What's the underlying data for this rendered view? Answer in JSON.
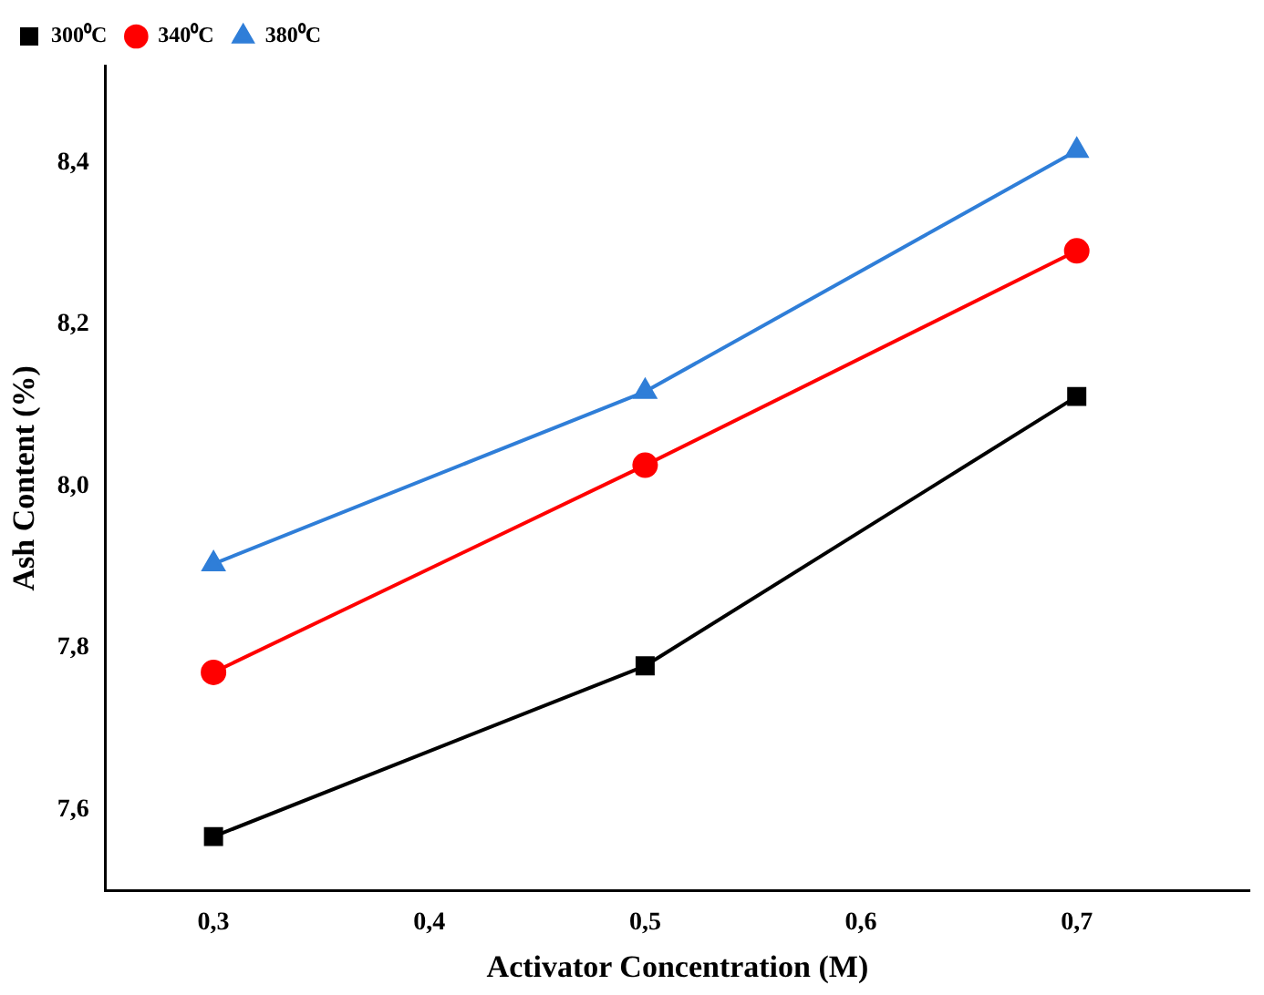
{
  "chart_data": {
    "type": "line",
    "xlabel": "Activator Concentration (M)",
    "ylabel": "Ash Content (%)",
    "x": [
      0.3,
      0.5,
      0.7
    ],
    "series": [
      {
        "name": "300⁰C",
        "color": "#000000",
        "marker": "square",
        "values": [
          7.567,
          7.778,
          8.111
        ]
      },
      {
        "name": "340⁰C",
        "color": "#ff0000",
        "marker": "circle",
        "values": [
          7.77,
          8.026,
          8.291
        ]
      },
      {
        "name": "380⁰C",
        "color": "#2f7ed8",
        "marker": "triangle",
        "values": [
          7.904,
          8.117,
          8.415
        ]
      }
    ],
    "xlim": [
      0.25,
      0.78
    ],
    "xticks": [
      {
        "value": 0.3,
        "label": "0,3"
      },
      {
        "value": 0.4,
        "label": "0,4"
      },
      {
        "value": 0.5,
        "label": "0,5"
      },
      {
        "value": 0.6,
        "label": "0,6"
      },
      {
        "value": 0.7,
        "label": "0,7"
      }
    ],
    "ylim": [
      7.5,
      8.52
    ],
    "yticks": [
      {
        "value": 7.6,
        "label": "7,6"
      },
      {
        "value": 7.8,
        "label": "7,8"
      },
      {
        "value": 8.0,
        "label": "8,0"
      },
      {
        "value": 8.2,
        "label": "8,2"
      },
      {
        "value": 8.4,
        "label": "8,4"
      }
    ],
    "grid": false,
    "legend": "top left",
    "line_style": "solid"
  }
}
